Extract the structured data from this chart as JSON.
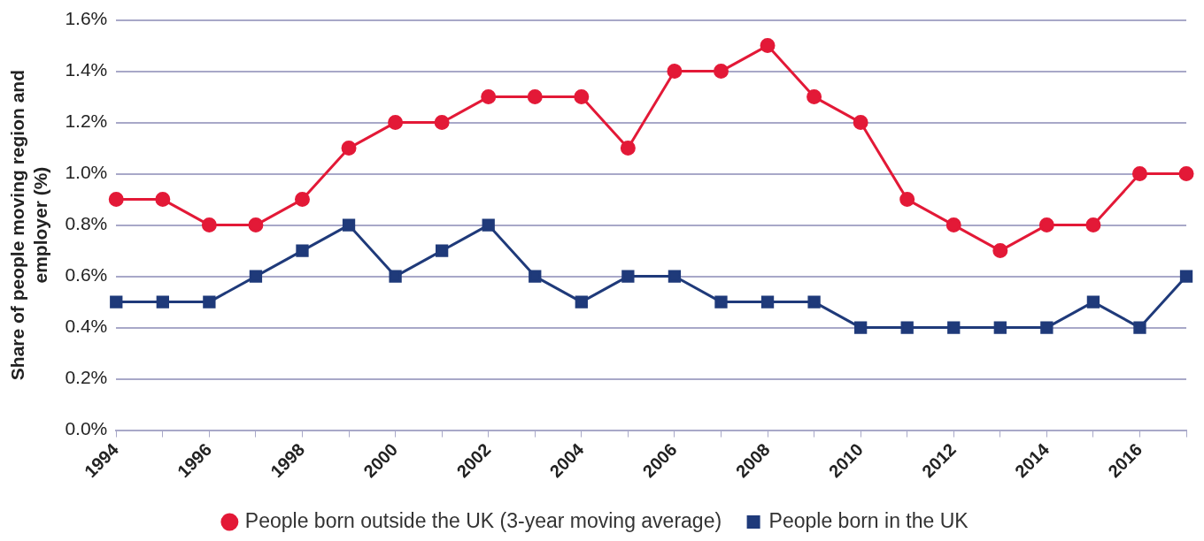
{
  "chart_data": {
    "type": "line",
    "ylabel": "Share of people moving region and employer (%)",
    "categories": [
      "1994",
      null,
      "1996",
      null,
      "1998",
      null,
      "2000",
      null,
      "2002",
      null,
      "2004",
      null,
      "2006",
      null,
      "2008",
      null,
      "2010",
      null,
      "2012",
      null,
      "2014",
      null,
      "2016",
      null
    ],
    "series": [
      {
        "name": "People born outside the UK (3-year moving average)",
        "color": "#e31937",
        "marker": "circle",
        "values": [
          0.9,
          0.9,
          0.8,
          0.8,
          0.9,
          1.1,
          1.2,
          1.2,
          1.3,
          1.3,
          1.3,
          1.1,
          1.4,
          1.4,
          1.5,
          1.3,
          1.2,
          0.9,
          0.8,
          0.7,
          0.8,
          0.8,
          1.0,
          1.0
        ]
      },
      {
        "name": "People born in the UK",
        "color": "#1f3a7a",
        "marker": "square",
        "values": [
          0.5,
          0.5,
          0.5,
          0.6,
          0.7,
          0.8,
          0.6,
          0.7,
          0.8,
          0.6,
          0.5,
          0.6,
          0.6,
          0.5,
          0.5,
          0.5,
          0.4,
          0.4,
          0.4,
          0.4,
          0.4,
          0.5,
          0.4,
          0.6
        ]
      }
    ],
    "ylim": [
      0,
      1.6
    ],
    "yticks": [
      {
        "value": 0,
        "label": "0.0%"
      },
      {
        "value": 0.2,
        "label": "0.2%"
      },
      {
        "value": 0.4,
        "label": "0.4%"
      },
      {
        "value": 0.6,
        "label": "0.6%"
      },
      {
        "value": 0.8,
        "label": "0.8%"
      },
      {
        "value": 1.0,
        "label": "1.0%"
      },
      {
        "value": 1.2,
        "label": "1.2%"
      },
      {
        "value": 1.4,
        "label": "1.4%"
      },
      {
        "value": 1.6,
        "label": "1.6%"
      }
    ],
    "grid": "y",
    "legend": "bottom",
    "line_style": "solid"
  }
}
